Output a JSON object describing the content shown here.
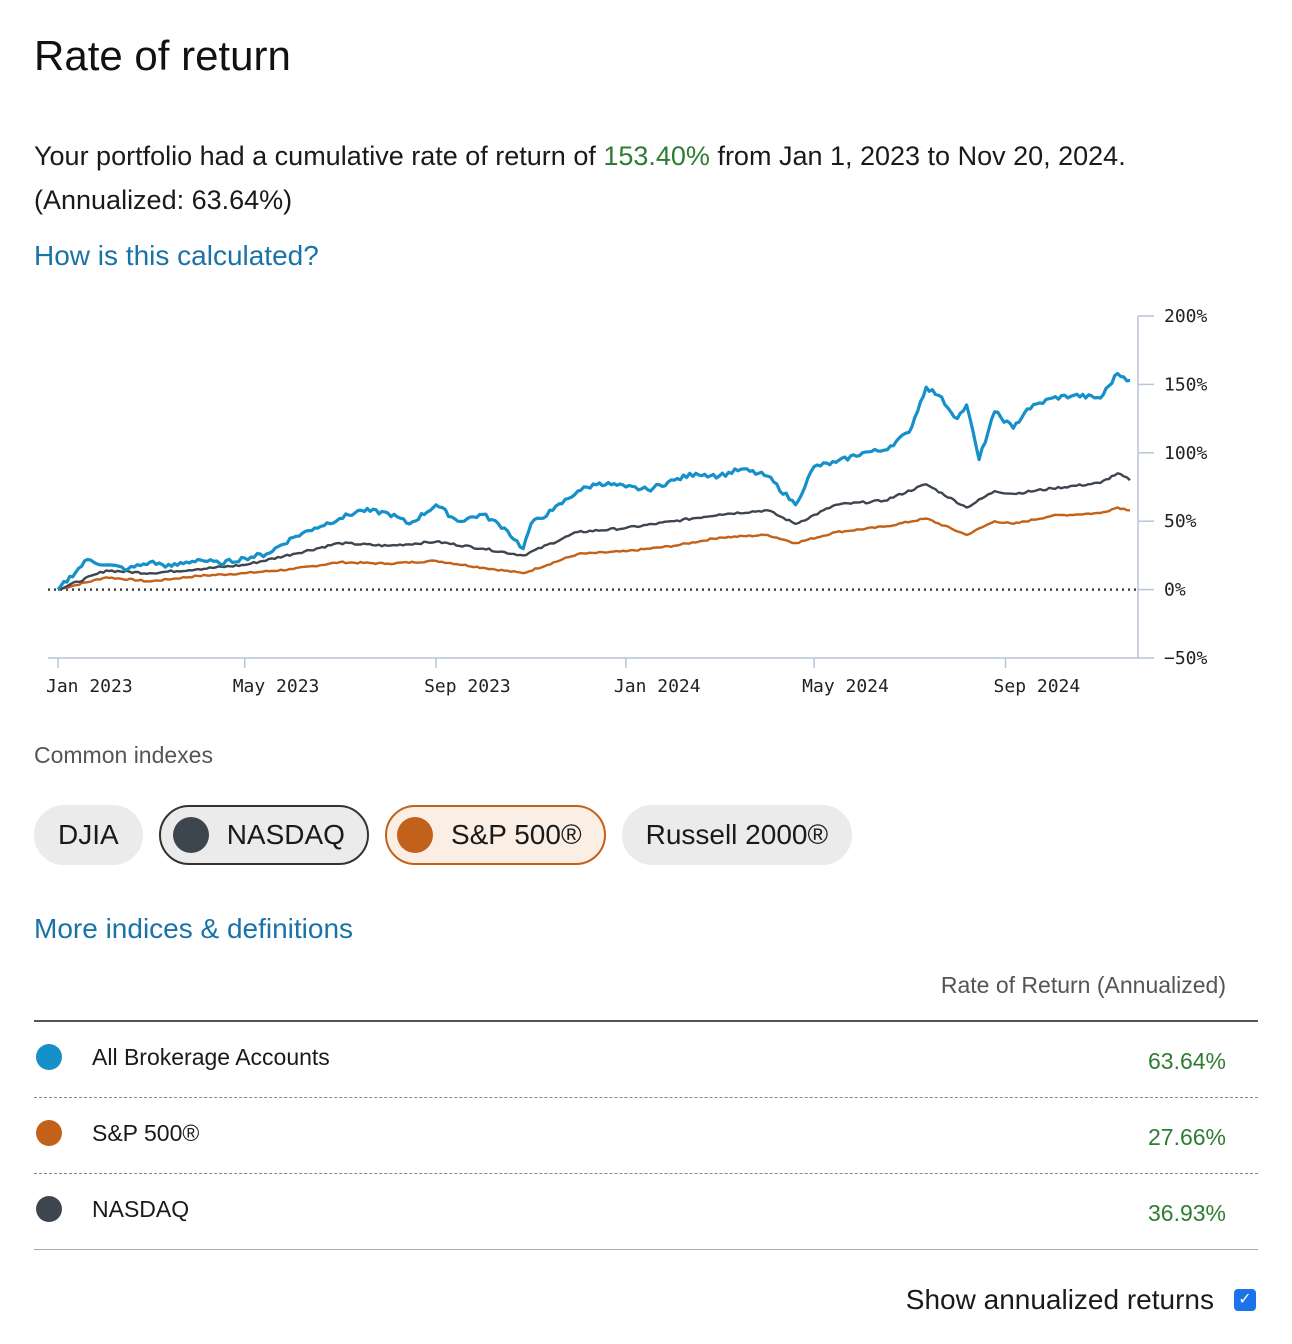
{
  "page": {
    "title": "Rate of return",
    "summary_before": "Your portfolio had a cumulative rate of return of ",
    "summary_highlight": "153.40%",
    "summary_after": " from Jan 1, 2023 to Nov 20, 2024. (Annualized: 63.64%)",
    "calc_link": "How is this calculated?",
    "more_link": "More indices & definitions",
    "section_label": "Common indexes"
  },
  "colors": {
    "portfolio": "#1590c8",
    "nasdaq": "#3d464f",
    "sp500": "#c2611a",
    "positive": "#2e7d32",
    "link": "#1a73a8"
  },
  "pills": [
    {
      "label": "DJIA",
      "selected": false
    },
    {
      "label": "NASDAQ",
      "selected": true,
      "color": "#3d464f"
    },
    {
      "label": "S&P 500®",
      "selected": true,
      "color": "#c2611a"
    },
    {
      "label": "Russell 2000®",
      "selected": false
    }
  ],
  "table": {
    "header": "Rate of Return (Annualized)",
    "rows": [
      {
        "name": "All Brokerage Accounts",
        "value": "63.64%",
        "color": "#1590c8"
      },
      {
        "name": "S&P 500®",
        "value": "27.66%",
        "color": "#c2611a"
      },
      {
        "name": "NASDAQ",
        "value": "36.93%",
        "color": "#3d464f"
      }
    ]
  },
  "annualized_toggle": {
    "label": "Show annualized returns",
    "checked": true
  },
  "chart_data": {
    "type": "line",
    "x_axis": "time",
    "x_tick_labels": [
      "Jan 2023",
      "May 2023",
      "Sep 2023",
      "Jan 2024",
      "May 2024",
      "Sep 2024"
    ],
    "y_tick_labels": [
      "200%",
      "150%",
      "100%",
      "50%",
      "0%",
      "−50%"
    ],
    "ylim": [
      -50,
      200
    ],
    "y_ticks": [
      200,
      150,
      100,
      50,
      0,
      -50
    ],
    "zero_line": "dotted",
    "series": [
      {
        "color": "#1590c8",
        "x": [
          "2023-01-01",
          "2023-01-20",
          "2023-02-01",
          "2023-02-15",
          "2023-03-01",
          "2023-03-15",
          "2023-04-01",
          "2023-04-15",
          "2023-05-01",
          "2023-05-15",
          "2023-06-01",
          "2023-06-15",
          "2023-07-01",
          "2023-07-15",
          "2023-08-01",
          "2023-08-15",
          "2023-09-01",
          "2023-09-15",
          "2023-10-01",
          "2023-10-15",
          "2023-10-27",
          "2023-11-01",
          "2023-11-15",
          "2023-12-01",
          "2023-12-15",
          "2024-01-01",
          "2024-01-15",
          "2024-02-01",
          "2024-02-15",
          "2024-03-01",
          "2024-03-15",
          "2024-04-01",
          "2024-04-19",
          "2024-05-01",
          "2024-05-15",
          "2024-06-01",
          "2024-06-15",
          "2024-07-01",
          "2024-07-12",
          "2024-07-20",
          "2024-08-01",
          "2024-08-07",
          "2024-08-15",
          "2024-08-25",
          "2024-09-06",
          "2024-09-15",
          "2024-10-01",
          "2024-10-15",
          "2024-11-01",
          "2024-11-12",
          "2024-11-20"
        ],
        "y": [
          0,
          22,
          18,
          15,
          20,
          17,
          22,
          19,
          23,
          26,
          38,
          45,
          52,
          58,
          56,
          48,
          62,
          50,
          55,
          45,
          30,
          48,
          58,
          72,
          78,
          75,
          73,
          80,
          85,
          83,
          88,
          83,
          62,
          90,
          93,
          100,
          102,
          115,
          148,
          142,
          125,
          135,
          95,
          130,
          118,
          132,
          140,
          142,
          140,
          158,
          153
        ]
      },
      {
        "color": "#3d464f",
        "x": [
          "2023-01-01",
          "2023-02-01",
          "2023-03-01",
          "2023-04-01",
          "2023-05-01",
          "2023-06-01",
          "2023-07-01",
          "2023-08-01",
          "2023-09-01",
          "2023-10-01",
          "2023-10-27",
          "2023-12-01",
          "2024-01-01",
          "2024-02-01",
          "2024-03-01",
          "2024-04-01",
          "2024-04-19",
          "2024-05-15",
          "2024-06-15",
          "2024-07-12",
          "2024-08-07",
          "2024-08-25",
          "2024-09-06",
          "2024-10-01",
          "2024-11-01",
          "2024-11-12",
          "2024-11-20"
        ],
        "y": [
          0,
          14,
          12,
          15,
          18,
          26,
          34,
          32,
          35,
          30,
          25,
          42,
          45,
          50,
          55,
          58,
          48,
          62,
          65,
          77,
          60,
          72,
          70,
          74,
          78,
          85,
          80
        ]
      },
      {
        "color": "#c2611a",
        "x": [
          "2023-01-01",
          "2023-02-01",
          "2023-03-01",
          "2023-04-01",
          "2023-05-01",
          "2023-06-01",
          "2023-07-01",
          "2023-08-01",
          "2023-09-01",
          "2023-10-01",
          "2023-10-27",
          "2023-12-01",
          "2024-01-01",
          "2024-02-01",
          "2024-03-01",
          "2024-04-01",
          "2024-04-19",
          "2024-05-15",
          "2024-06-15",
          "2024-07-12",
          "2024-08-07",
          "2024-08-25",
          "2024-09-06",
          "2024-10-01",
          "2024-11-01",
          "2024-11-12",
          "2024-11-20"
        ],
        "y": [
          0,
          9,
          6,
          10,
          12,
          15,
          20,
          19,
          21,
          16,
          12,
          26,
          28,
          32,
          38,
          40,
          34,
          42,
          46,
          52,
          40,
          50,
          48,
          54,
          56,
          60,
          58
        ]
      }
    ]
  }
}
